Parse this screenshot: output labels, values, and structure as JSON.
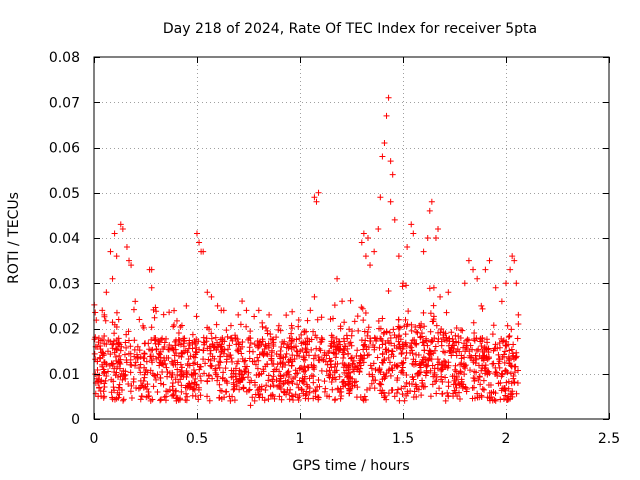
{
  "chart_data": {
    "type": "scatter",
    "title": "Day 218 of 2024, Rate Of TEC Index for receiver 5pta",
    "xlabel": "GPS time / hours",
    "ylabel": "ROTI / TECUs",
    "xlim": [
      0,
      2.5
    ],
    "ylim": [
      0,
      0.08
    ],
    "xticks": [
      0,
      0.5,
      1,
      1.5,
      2,
      2.5
    ],
    "xtick_labels": [
      "0",
      "0.5",
      "1",
      "1.5",
      "2",
      "2.5"
    ],
    "yticks": [
      0,
      0.01,
      0.02,
      0.03,
      0.04,
      0.05,
      0.06,
      0.07,
      0.08
    ],
    "ytick_labels": [
      "0",
      "0.01",
      "0.02",
      "0.03",
      "0.04",
      "0.05",
      "0.06",
      "0.07",
      "0.08"
    ],
    "grid": true,
    "marker": "+",
    "marker_color": "#ff0000",
    "series": [
      {
        "name": "ROTI",
        "points": [
          [
            0.1,
            0.041
          ],
          [
            0.13,
            0.043
          ],
          [
            0.14,
            0.042
          ],
          [
            0.16,
            0.038
          ],
          [
            0.08,
            0.037
          ],
          [
            0.11,
            0.036
          ],
          [
            0.17,
            0.035
          ],
          [
            0.18,
            0.034
          ],
          [
            0.27,
            0.033
          ],
          [
            0.28,
            0.033
          ],
          [
            0.09,
            0.031
          ],
          [
            0.28,
            0.029
          ],
          [
            0.06,
            0.028
          ],
          [
            0.2,
            0.026
          ],
          [
            0.04,
            0.024
          ],
          [
            0.05,
            0.023
          ],
          [
            0.12,
            0.022
          ],
          [
            0.22,
            0.022
          ],
          [
            0.5,
            0.041
          ],
          [
            0.51,
            0.039
          ],
          [
            0.52,
            0.037
          ],
          [
            0.53,
            0.037
          ],
          [
            0.55,
            0.028
          ],
          [
            0.57,
            0.027
          ],
          [
            0.6,
            0.025
          ],
          [
            0.63,
            0.024
          ],
          [
            0.7,
            0.023
          ],
          [
            0.74,
            0.024
          ],
          [
            0.8,
            0.024
          ],
          [
            0.85,
            0.023
          ],
          [
            1.07,
            0.049
          ],
          [
            1.08,
            0.048
          ],
          [
            1.09,
            0.05
          ],
          [
            1.07,
            0.027
          ],
          [
            1.05,
            0.024
          ],
          [
            1.18,
            0.031
          ],
          [
            1.31,
            0.041
          ],
          [
            1.33,
            0.04
          ],
          [
            1.3,
            0.039
          ],
          [
            1.32,
            0.036
          ],
          [
            1.34,
            0.034
          ],
          [
            1.36,
            0.037
          ],
          [
            1.38,
            0.042
          ],
          [
            1.39,
            0.049
          ],
          [
            1.4,
            0.058
          ],
          [
            1.41,
            0.061
          ],
          [
            1.42,
            0.067
          ],
          [
            1.43,
            0.071
          ],
          [
            1.44,
            0.057
          ],
          [
            1.45,
            0.054
          ],
          [
            1.44,
            0.048
          ],
          [
            1.46,
            0.044
          ],
          [
            1.48,
            0.036
          ],
          [
            1.5,
            0.03
          ],
          [
            1.52,
            0.038
          ],
          [
            1.54,
            0.043
          ],
          [
            1.55,
            0.041
          ],
          [
            1.6,
            0.037
          ],
          [
            1.62,
            0.04
          ],
          [
            1.63,
            0.046
          ],
          [
            1.64,
            0.048
          ],
          [
            1.66,
            0.04
          ],
          [
            1.67,
            0.042
          ],
          [
            1.65,
            0.029
          ],
          [
            1.68,
            0.027
          ],
          [
            1.72,
            0.028
          ],
          [
            1.8,
            0.03
          ],
          [
            1.82,
            0.035
          ],
          [
            1.84,
            0.033
          ],
          [
            1.86,
            0.031
          ],
          [
            1.88,
            0.025
          ],
          [
            1.9,
            0.033
          ],
          [
            1.92,
            0.035
          ],
          [
            1.95,
            0.029
          ],
          [
            1.98,
            0.026
          ],
          [
            2.0,
            0.03
          ],
          [
            2.02,
            0.033
          ],
          [
            2.03,
            0.036
          ],
          [
            2.04,
            0.035
          ],
          [
            2.05,
            0.03
          ],
          [
            2.06,
            0.023
          ],
          [
            2.06,
            0.021
          ],
          [
            0.76,
            0.003
          ],
          [
            0.78,
            0.004
          ],
          [
            0.4,
            0.004
          ],
          [
            1.95,
            0.004
          ],
          [
            2.01,
            0.005
          ],
          [
            0.02,
            0.005
          ],
          [
            0.35,
            0.005
          ],
          [
            0.9,
            0.005
          ],
          [
            1.46,
            0.005
          ],
          [
            1.72,
            0.005
          ],
          [
            0.64,
            0.006
          ],
          [
            1.2,
            0.006
          ]
        ]
      }
    ]
  }
}
